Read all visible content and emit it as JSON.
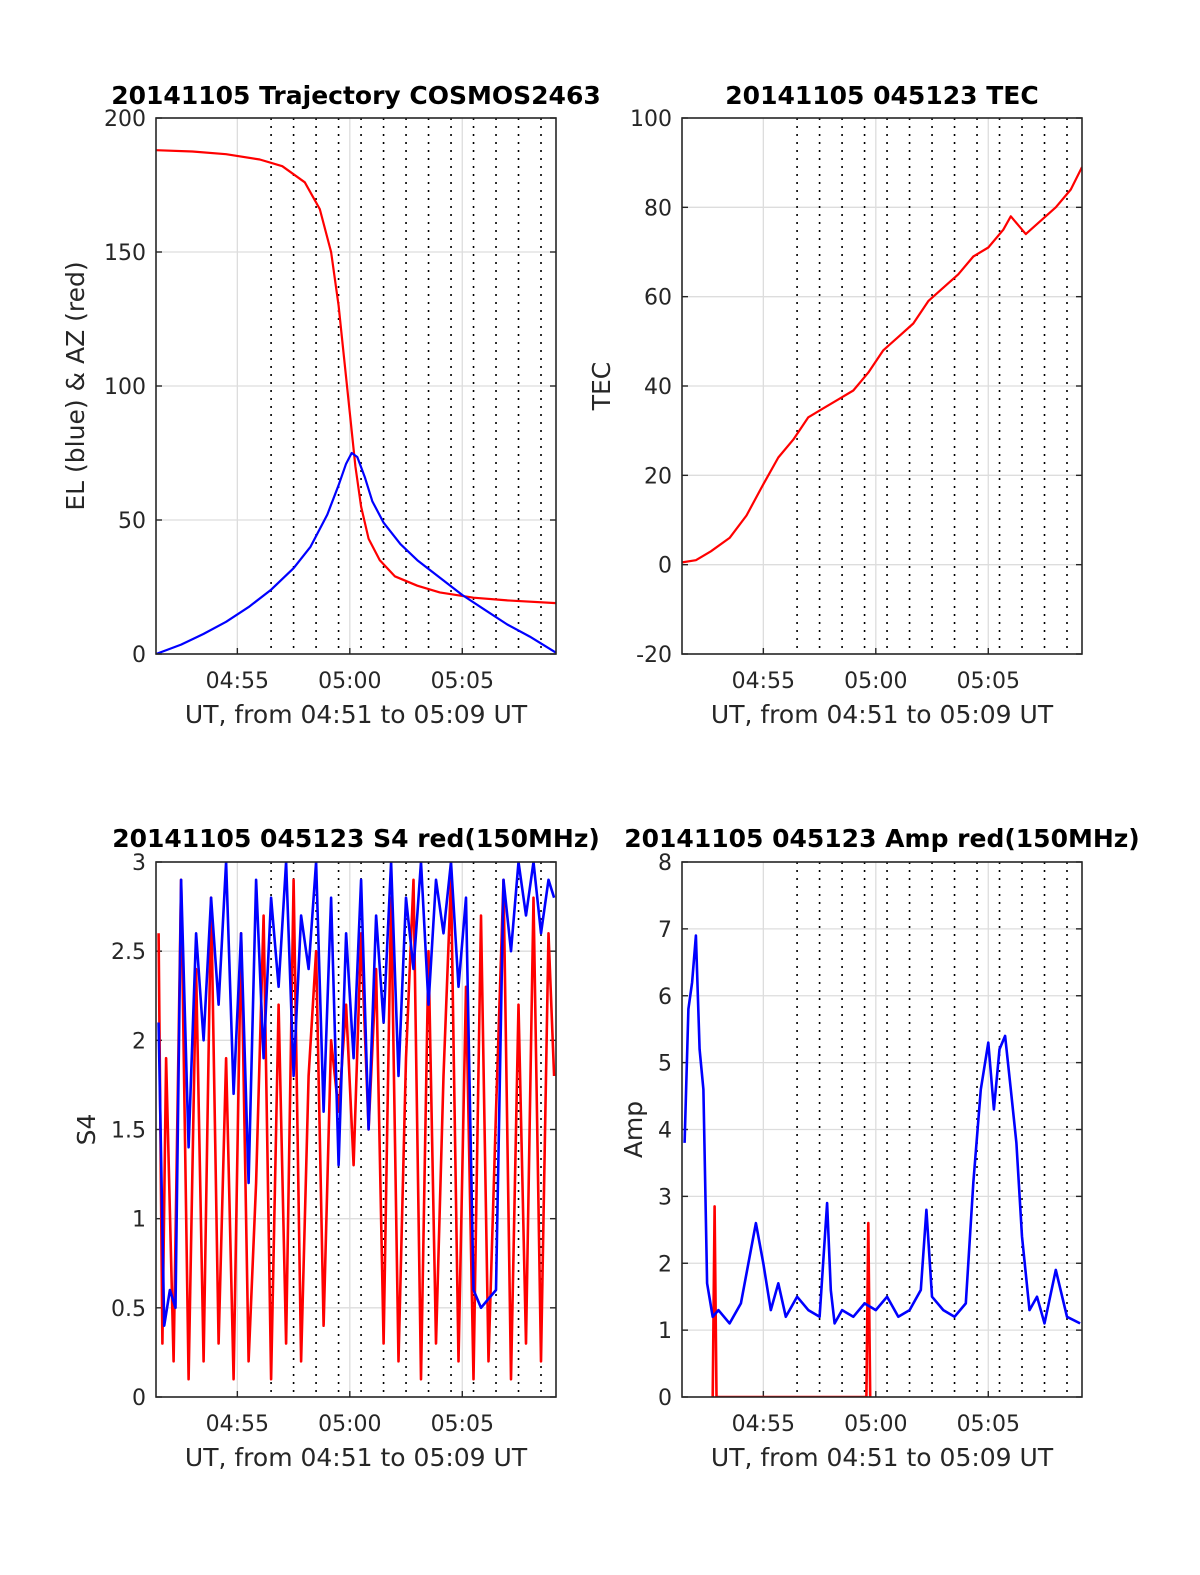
{
  "chart_data": [
    {
      "type": "line",
      "title": "20141105 Trajectory COSMOS2463",
      "xlabel": "UT, from 04:51 to 05:09 UT",
      "ylabel": "EL (blue) & AZ (red)",
      "xlim": [
        "04:51:23",
        "05:09:10"
      ],
      "ylim": [
        0,
        200
      ],
      "x_ticks": [
        "04:55",
        "05:00",
        "05:05"
      ],
      "y_ticks": [
        "0",
        "50",
        "100",
        "150",
        "200"
      ],
      "grid": true,
      "series": [
        {
          "color": "#ff0000",
          "x": [
            "04:51:23",
            "04:53:00",
            "04:54:30",
            "04:56:00",
            "04:57:00",
            "04:58:00",
            "04:58:40",
            "04:59:10",
            "04:59:30",
            "04:59:45",
            "05:00:00",
            "05:00:15",
            "05:00:30",
            "05:00:50",
            "05:01:20",
            "05:02:00",
            "05:03:00",
            "05:04:00",
            "05:05:30",
            "05:07:00",
            "05:09:10"
          ],
          "values": [
            188,
            187.5,
            186.5,
            184.5,
            182,
            176,
            166,
            150,
            130,
            110,
            90,
            70,
            55,
            43,
            35,
            29,
            25.5,
            23,
            21,
            20,
            19
          ]
        },
        {
          "color": "#0000ff",
          "x": [
            "04:51:23",
            "04:52:30",
            "04:53:30",
            "04:54:30",
            "04:55:30",
            "04:56:30",
            "04:57:30",
            "04:58:15",
            "04:59:00",
            "04:59:30",
            "04:59:50",
            "05:00:05",
            "05:00:20",
            "05:00:40",
            "05:01:00",
            "05:01:30",
            "05:02:15",
            "05:03:00",
            "05:04:00",
            "05:05:00",
            "05:06:00",
            "05:07:00",
            "05:08:00",
            "05:09:10"
          ],
          "values": [
            0,
            3.5,
            7.5,
            12,
            17.5,
            24,
            32,
            40,
            52,
            63,
            71,
            75,
            73.5,
            66,
            57,
            49,
            41,
            35,
            28.5,
            22,
            16.5,
            11,
            6.5,
            0.5
          ]
        }
      ]
    },
    {
      "type": "line",
      "title": "20141105 045123 TEC",
      "xlabel": "UT, from 04:51 to 05:09 UT",
      "ylabel": "TEC",
      "xlim": [
        "04:51:23",
        "05:09:10"
      ],
      "ylim": [
        -20,
        100
      ],
      "x_ticks": [
        "04:55",
        "05:00",
        "05:05"
      ],
      "y_ticks": [
        "-20",
        "0",
        "20",
        "40",
        "60",
        "80",
        "100"
      ],
      "grid": true,
      "series": [
        {
          "color": "#ff0000",
          "x": [
            "04:51:23",
            "04:52:00",
            "04:52:40",
            "04:53:30",
            "04:54:15",
            "04:55:00",
            "04:55:40",
            "04:56:20",
            "04:57:00",
            "04:57:40",
            "04:58:20",
            "04:59:00",
            "04:59:40",
            "05:00:20",
            "05:01:00",
            "05:01:40",
            "05:02:20",
            "05:03:00",
            "05:03:40",
            "05:04:20",
            "05:05:00",
            "05:05:40",
            "05:06:00",
            "05:06:20",
            "05:06:40",
            "05:07:20",
            "05:08:00",
            "05:08:40",
            "05:09:10"
          ],
          "values": [
            0.5,
            1,
            3,
            6,
            11,
            18,
            24,
            28,
            33,
            35,
            37,
            39,
            43,
            48,
            51,
            54,
            59,
            62,
            65,
            69,
            71,
            75,
            78,
            76,
            74,
            77,
            80,
            84,
            89
          ]
        }
      ]
    },
    {
      "type": "line",
      "title": "20141105 045123 S4 red(150MHz)",
      "xlabel": "UT, from 04:51 to 05:09 UT",
      "ylabel": "S4",
      "xlim": [
        "04:51:23",
        "05:09:10"
      ],
      "ylim": [
        0,
        3
      ],
      "x_ticks": [
        "04:55",
        "05:00",
        "05:05"
      ],
      "y_ticks": [
        "0",
        "0.5",
        "1",
        "1.5",
        "2",
        "2.5",
        "3"
      ],
      "grid": true,
      "series": [
        {
          "color": "#ff0000",
          "x": [
            "04:51:30",
            "04:51:40",
            "04:51:50",
            "04:52:10",
            "04:52:30",
            "04:52:50",
            "04:53:10",
            "04:53:30",
            "04:53:50",
            "04:54:10",
            "04:54:30",
            "04:54:50",
            "04:55:10",
            "04:55:30",
            "04:55:50",
            "04:56:10",
            "04:56:30",
            "04:56:50",
            "04:57:10",
            "04:57:30",
            "04:57:50",
            "04:58:10",
            "04:58:30",
            "04:58:50",
            "04:59:10",
            "04:59:30",
            "04:59:50",
            "05:00:10",
            "05:00:30",
            "05:00:50",
            "05:01:10",
            "05:01:30",
            "05:01:50",
            "05:02:10",
            "05:02:30",
            "05:02:50",
            "05:03:10",
            "05:03:30",
            "05:03:50",
            "05:04:10",
            "05:04:30",
            "05:04:50",
            "05:05:10",
            "05:05:30",
            "05:05:50",
            "05:06:10",
            "05:06:30",
            "05:06:50",
            "05:07:10",
            "05:07:30",
            "05:07:50",
            "05:08:10",
            "05:08:30",
            "05:08:50",
            "05:09:05"
          ],
          "values": [
            2.6,
            0.3,
            1.9,
            0.2,
            2.9,
            0.1,
            2.4,
            0.2,
            2.8,
            0.3,
            1.9,
            0.1,
            2.6,
            0.2,
            1.2,
            2.7,
            0.1,
            2.2,
            0.3,
            2.9,
            0.2,
            1.8,
            2.5,
            0.4,
            2.0,
            1.6,
            2.2,
            1.3,
            2.6,
            1.5,
            2.4,
            0.3,
            2.8,
            0.2,
            1.9,
            2.9,
            0.1,
            2.5,
            0.3,
            1.8,
            2.9,
            0.2,
            2.3,
            0.1,
            2.7,
            0.2,
            1.6,
            2.9,
            0.1,
            2.2,
            0.3,
            2.8,
            0.2,
            2.6,
            1.8
          ]
        },
        {
          "color": "#0000ff",
          "x": [
            "04:51:30",
            "04:51:45",
            "04:52:00",
            "04:52:15",
            "04:52:30",
            "04:52:50",
            "04:53:10",
            "04:53:30",
            "04:53:50",
            "04:54:10",
            "04:54:30",
            "04:54:50",
            "04:55:10",
            "04:55:30",
            "04:55:50",
            "04:56:10",
            "04:56:30",
            "04:56:50",
            "04:57:10",
            "04:57:30",
            "04:57:50",
            "04:58:10",
            "04:58:30",
            "04:58:50",
            "04:59:10",
            "04:59:30",
            "04:59:50",
            "05:00:10",
            "05:00:30",
            "05:00:50",
            "05:01:10",
            "05:01:30",
            "05:01:50",
            "05:02:10",
            "05:02:30",
            "05:02:50",
            "05:03:10",
            "05:03:30",
            "05:03:50",
            "05:04:10",
            "05:04:30",
            "05:04:50",
            "05:05:10",
            "05:05:30",
            "05:05:50",
            "05:06:10",
            "05:06:30",
            "05:06:50",
            "05:07:10",
            "05:07:30",
            "05:07:50",
            "05:08:10",
            "05:08:30",
            "05:08:50",
            "05:09:05"
          ],
          "values": [
            2.1,
            0.4,
            0.6,
            0.5,
            2.9,
            1.4,
            2.6,
            2.0,
            2.8,
            2.2,
            3.0,
            1.7,
            2.6,
            1.2,
            2.9,
            1.9,
            2.8,
            2.3,
            3.0,
            1.8,
            2.7,
            2.4,
            3.0,
            1.6,
            2.8,
            1.3,
            2.6,
            1.9,
            2.9,
            1.5,
            2.7,
            2.1,
            3.0,
            1.8,
            2.8,
            2.4,
            3.0,
            2.2,
            2.9,
            2.6,
            3.0,
            2.3,
            2.8,
            0.6,
            0.5,
            0.55,
            0.6,
            2.9,
            2.5,
            3.0,
            2.7,
            3.0,
            2.6,
            2.9,
            2.8
          ]
        }
      ]
    },
    {
      "type": "line",
      "title": "20141105 045123 Amp red(150MHz)",
      "xlabel": "UT, from 04:51 to 05:09 UT",
      "ylabel": "Amp",
      "xlim": [
        "04:51:23",
        "05:09:10"
      ],
      "ylim": [
        0,
        8
      ],
      "x_ticks": [
        "04:55",
        "05:00",
        "05:05"
      ],
      "y_ticks": [
        "0",
        "1",
        "2",
        "3",
        "4",
        "5",
        "6",
        "7",
        "8"
      ],
      "grid": true,
      "series": [
        {
          "color": "#ff0000",
          "x": [
            "04:52:45",
            "04:52:50",
            "04:52:55",
            "04:59:35",
            "04:59:40",
            "04:59:45"
          ],
          "values": [
            0,
            2.85,
            0,
            0,
            2.6,
            0
          ]
        },
        {
          "color": "#0000ff",
          "x": [
            "04:51:30",
            "04:51:40",
            "04:51:50",
            "04:52:00",
            "04:52:10",
            "04:52:20",
            "04:52:30",
            "04:52:45",
            "04:53:00",
            "04:53:30",
            "04:54:00",
            "04:54:20",
            "04:54:40",
            "04:55:00",
            "04:55:20",
            "04:55:40",
            "04:56:00",
            "04:56:30",
            "04:57:00",
            "04:57:30",
            "04:57:50",
            "04:58:00",
            "04:58:10",
            "04:58:30",
            "04:59:00",
            "04:59:30",
            "05:00:00",
            "05:00:30",
            "05:01:00",
            "05:01:30",
            "05:02:00",
            "05:02:15",
            "05:02:30",
            "05:03:00",
            "05:03:30",
            "05:04:00",
            "05:04:20",
            "05:04:40",
            "05:05:00",
            "05:05:15",
            "05:05:30",
            "05:05:45",
            "05:06:00",
            "05:06:15",
            "05:06:30",
            "05:06:50",
            "05:07:10",
            "05:07:30",
            "05:08:00",
            "05:08:30",
            "05:09:05"
          ],
          "values": [
            3.8,
            5.8,
            6.2,
            6.9,
            5.2,
            4.6,
            1.7,
            1.2,
            1.3,
            1.1,
            1.4,
            2.0,
            2.6,
            2.0,
            1.3,
            1.7,
            1.2,
            1.5,
            1.3,
            1.2,
            2.9,
            1.6,
            1.1,
            1.3,
            1.2,
            1.4,
            1.3,
            1.5,
            1.2,
            1.3,
            1.6,
            2.8,
            1.5,
            1.3,
            1.2,
            1.4,
            3.2,
            4.6,
            5.3,
            4.3,
            5.2,
            5.4,
            4.6,
            3.8,
            2.4,
            1.3,
            1.5,
            1.1,
            1.9,
            1.2,
            1.1
          ]
        }
      ]
    }
  ]
}
